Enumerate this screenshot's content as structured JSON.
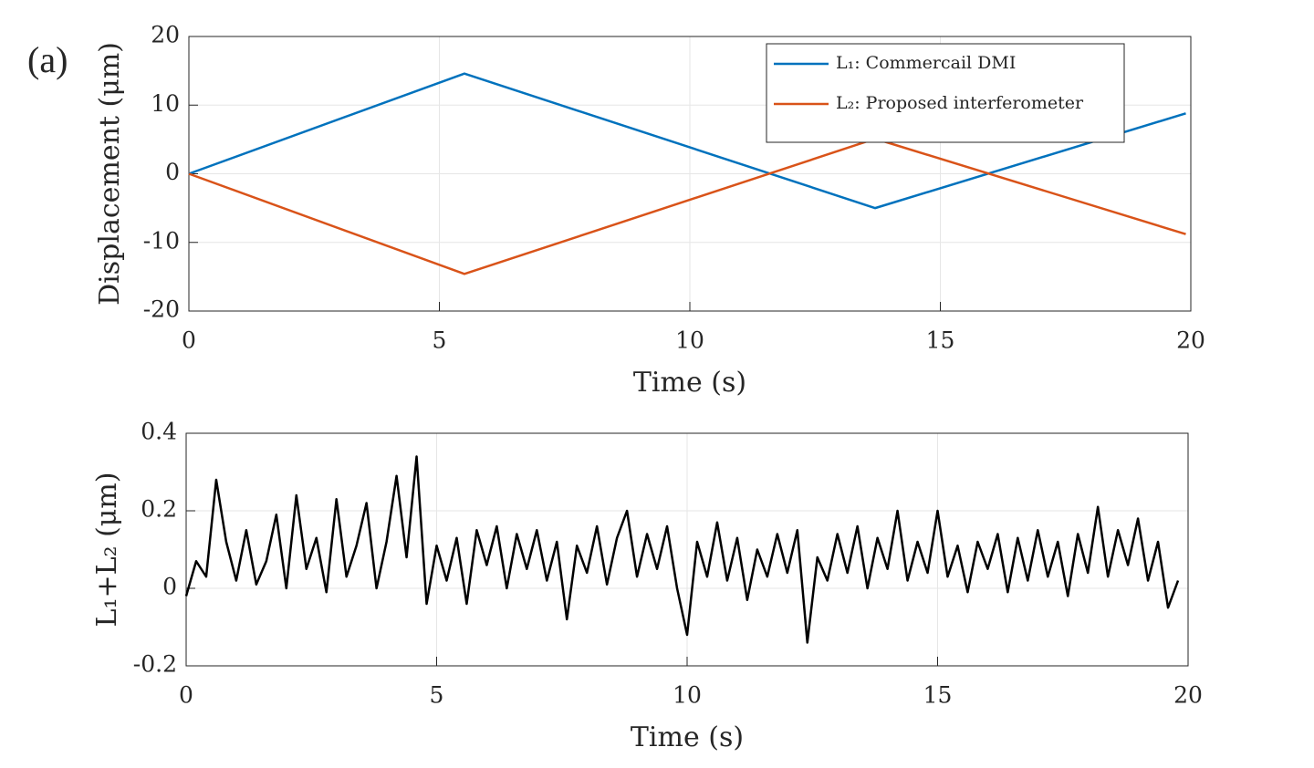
{
  "panel_label": "(a)",
  "chart_data": [
    {
      "type": "line",
      "xlabel": "Time (s)",
      "ylabel": "Displacement (μm)",
      "x": [
        0,
        5.5,
        13.7,
        19.9
      ],
      "series": [
        {
          "name": "L₁: Commercail DMI",
          "color": "#0072bd",
          "values": [
            0,
            14.6,
            -5,
            8.8
          ]
        },
        {
          "name": "L₂: Proposed interferometer",
          "color": "#d95319",
          "values": [
            0,
            -14.6,
            5.1,
            -8.8
          ]
        }
      ],
      "xlim": [
        0,
        20
      ],
      "xticks": [
        0,
        5,
        10,
        15,
        20
      ],
      "ylim": [
        -20,
        20
      ],
      "yticks": [
        -20,
        -10,
        0,
        10,
        20
      ],
      "grid": true,
      "legend": "upper right"
    },
    {
      "type": "line",
      "xlabel": "Time (s)",
      "ylabel": "L₁+L₂ (μm)",
      "x": [
        0,
        0.2,
        0.4,
        0.6,
        0.8,
        1,
        1.2,
        1.4,
        1.6,
        1.8,
        2,
        2.2,
        2.4,
        2.6,
        2.8,
        3,
        3.2,
        3.4,
        3.6,
        3.8,
        4,
        4.2,
        4.4,
        4.6,
        4.8,
        5,
        5.2,
        5.4,
        5.6,
        5.8,
        6,
        6.2,
        6.4,
        6.6,
        6.8,
        7,
        7.2,
        7.4,
        7.6,
        7.8,
        8,
        8.2,
        8.4,
        8.6,
        8.8,
        9,
        9.2,
        9.4,
        9.6,
        9.8,
        10,
        10.2,
        10.4,
        10.6,
        10.8,
        11,
        11.2,
        11.4,
        11.6,
        11.8,
        12,
        12.2,
        12.4,
        12.6,
        12.8,
        13,
        13.2,
        13.4,
        13.6,
        13.8,
        14,
        14.2,
        14.4,
        14.6,
        14.8,
        15,
        15.2,
        15.4,
        15.6,
        15.8,
        16,
        16.2,
        16.4,
        16.6,
        16.8,
        17,
        17.2,
        17.4,
        17.6,
        17.8,
        18,
        18.2,
        18.4,
        18.6,
        18.8,
        19,
        19.2,
        19.4,
        19.6,
        19.8
      ],
      "series": [
        {
          "color": "#000000",
          "values": [
            -0.02,
            0.07,
            0.03,
            0.28,
            0.12,
            0.02,
            0.15,
            0.01,
            0.07,
            0.19,
            0,
            0.24,
            0.05,
            0.13,
            -0.01,
            0.23,
            0.03,
            0.11,
            0.22,
            0,
            0.12,
            0.29,
            0.08,
            0.34,
            -0.04,
            0.11,
            0.02,
            0.13,
            -0.04,
            0.15,
            0.06,
            0.16,
            0,
            0.14,
            0.05,
            0.15,
            0.02,
            0.12,
            -0.08,
            0.11,
            0.04,
            0.16,
            0.01,
            0.13,
            0.2,
            0.03,
            0.14,
            0.05,
            0.16,
            0,
            -0.12,
            0.12,
            0.03,
            0.17,
            0.02,
            0.13,
            -0.03,
            0.1,
            0.03,
            0.14,
            0.04,
            0.15,
            -0.14,
            0.08,
            0.02,
            0.14,
            0.04,
            0.16,
            0,
            0.13,
            0.05,
            0.2,
            0.02,
            0.12,
            0.04,
            0.2,
            0.03,
            0.11,
            -0.01,
            0.12,
            0.05,
            0.14,
            -0.01,
            0.13,
            0.02,
            0.15,
            0.03,
            0.12,
            -0.02,
            0.14,
            0.04,
            0.21,
            0.03,
            0.15,
            0.06,
            0.18,
            0.02,
            0.12,
            -0.05,
            0.02
          ]
        }
      ],
      "xlim": [
        0,
        20
      ],
      "xticks": [
        0,
        5,
        10,
        15,
        20
      ],
      "ylim": [
        -0.2,
        0.4
      ],
      "yticks": [
        -0.2,
        0,
        0.2,
        0.4
      ],
      "grid": true
    }
  ]
}
